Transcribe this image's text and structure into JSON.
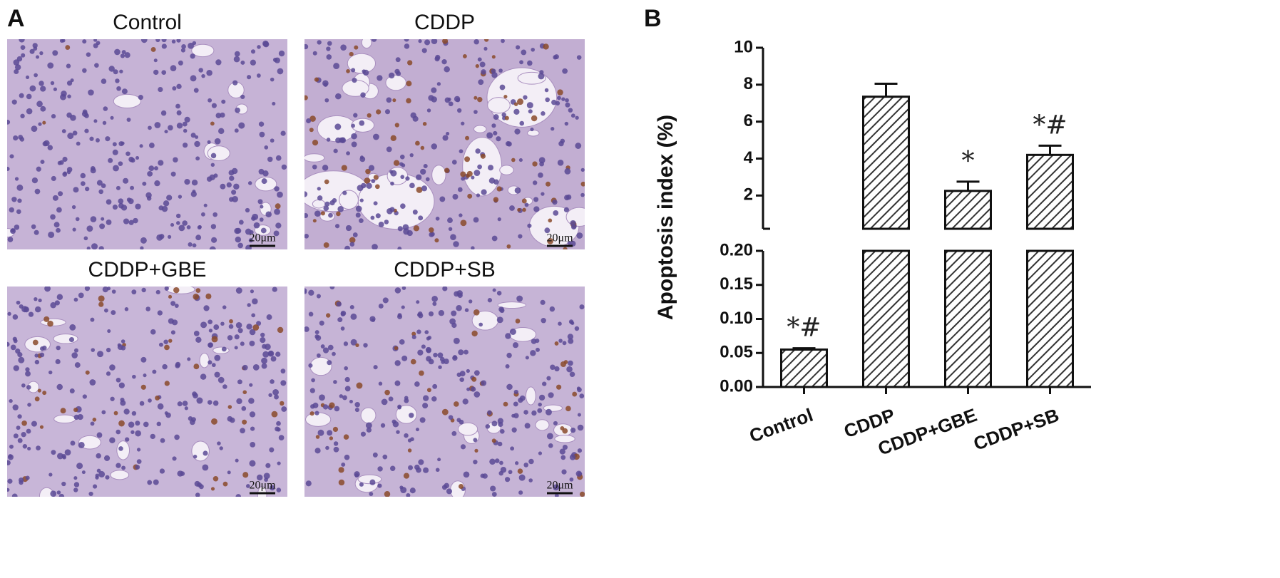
{
  "panel_a": {
    "label": "A",
    "images": [
      {
        "title": "Control",
        "scale_bar": "20μm"
      },
      {
        "title": "CDDP",
        "scale_bar": "20μm"
      },
      {
        "title": "CDDP+GBE",
        "scale_bar": "20μm"
      },
      {
        "title": "CDDP+SB",
        "scale_bar": "20μm"
      }
    ]
  },
  "chart_data": {
    "type": "bar",
    "panel_label": "B",
    "y_label": "Apoptosis index (%)",
    "categories": [
      "Control",
      "CDDP",
      "CDDP+GBE",
      "CDDP+SB"
    ],
    "values": [
      0.055,
      7.35,
      2.25,
      4.2
    ],
    "errors": [
      0.002,
      0.7,
      0.5,
      0.5
    ],
    "annotations": [
      "*#",
      null,
      "*",
      "*#"
    ],
    "color": "#333333",
    "hatch": "diagonal",
    "axis_break": true,
    "ylim": [
      0,
      0.2
    ],
    "yticks": [
      {
        "value": 0,
        "label": "0.00"
      },
      0.05,
      {
        "value": 0.1,
        "label": "0.10"
      },
      0.15,
      {
        "value": 0.2,
        "label": "0.20"
      }
    ],
    "ylim_upper": [
      0.2,
      10
    ],
    "yticks_upper": [
      2,
      4,
      6,
      8,
      10
    ]
  }
}
